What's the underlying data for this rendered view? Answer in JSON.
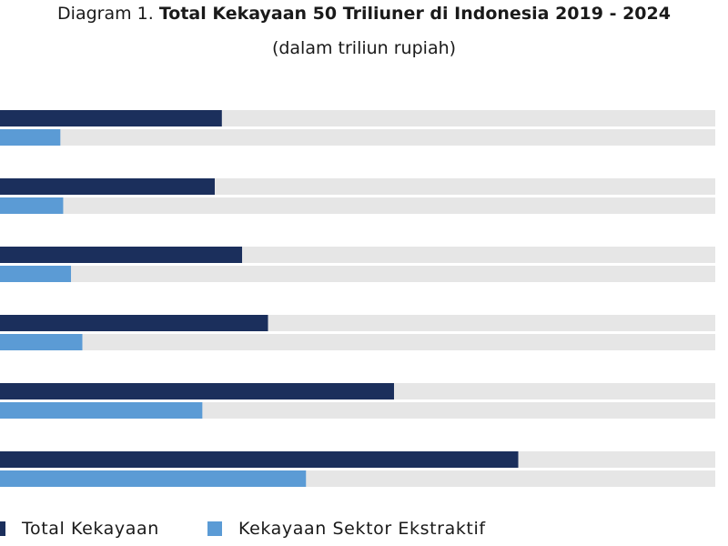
{
  "header": {
    "title_prefix": "Diagram 1. ",
    "title": "Total Kekayaan 50 Triliuner di Indonesia 2019 - 2024",
    "subtitle": "(dalam triliun rupiah)"
  },
  "colors": {
    "total": "#1b2f5c",
    "ekstraktif": "#5b9bd5",
    "track": "#e6e6e6"
  },
  "chart_data": {
    "type": "bar",
    "orientation": "horizontal",
    "title": "Total Kekayaan 50 Triliuner di Indonesia 2019 - 2024",
    "subtitle": "(dalam triliun rupiah)",
    "categories": [
      "",
      "",
      "",
      "",
      "",
      ""
    ],
    "series": [
      {
        "name": "Total Kekayaan",
        "values": [
          625,
          605,
          682,
          755,
          1110,
          1460
        ]
      },
      {
        "name": "Kekayaan Sektor Ekstraktif",
        "values": [
          170,
          178,
          200,
          232,
          570,
          862
        ]
      }
    ],
    "xlim": [
      0,
      2015
    ],
    "grid": false,
    "legend_position": "bottom"
  },
  "legend": {
    "items": [
      {
        "label": "Total Kekayaan",
        "color": "#1b2f5c"
      },
      {
        "label": "Kekayaan Sektor Ekstraktif",
        "color": "#5b9bd5"
      }
    ]
  }
}
